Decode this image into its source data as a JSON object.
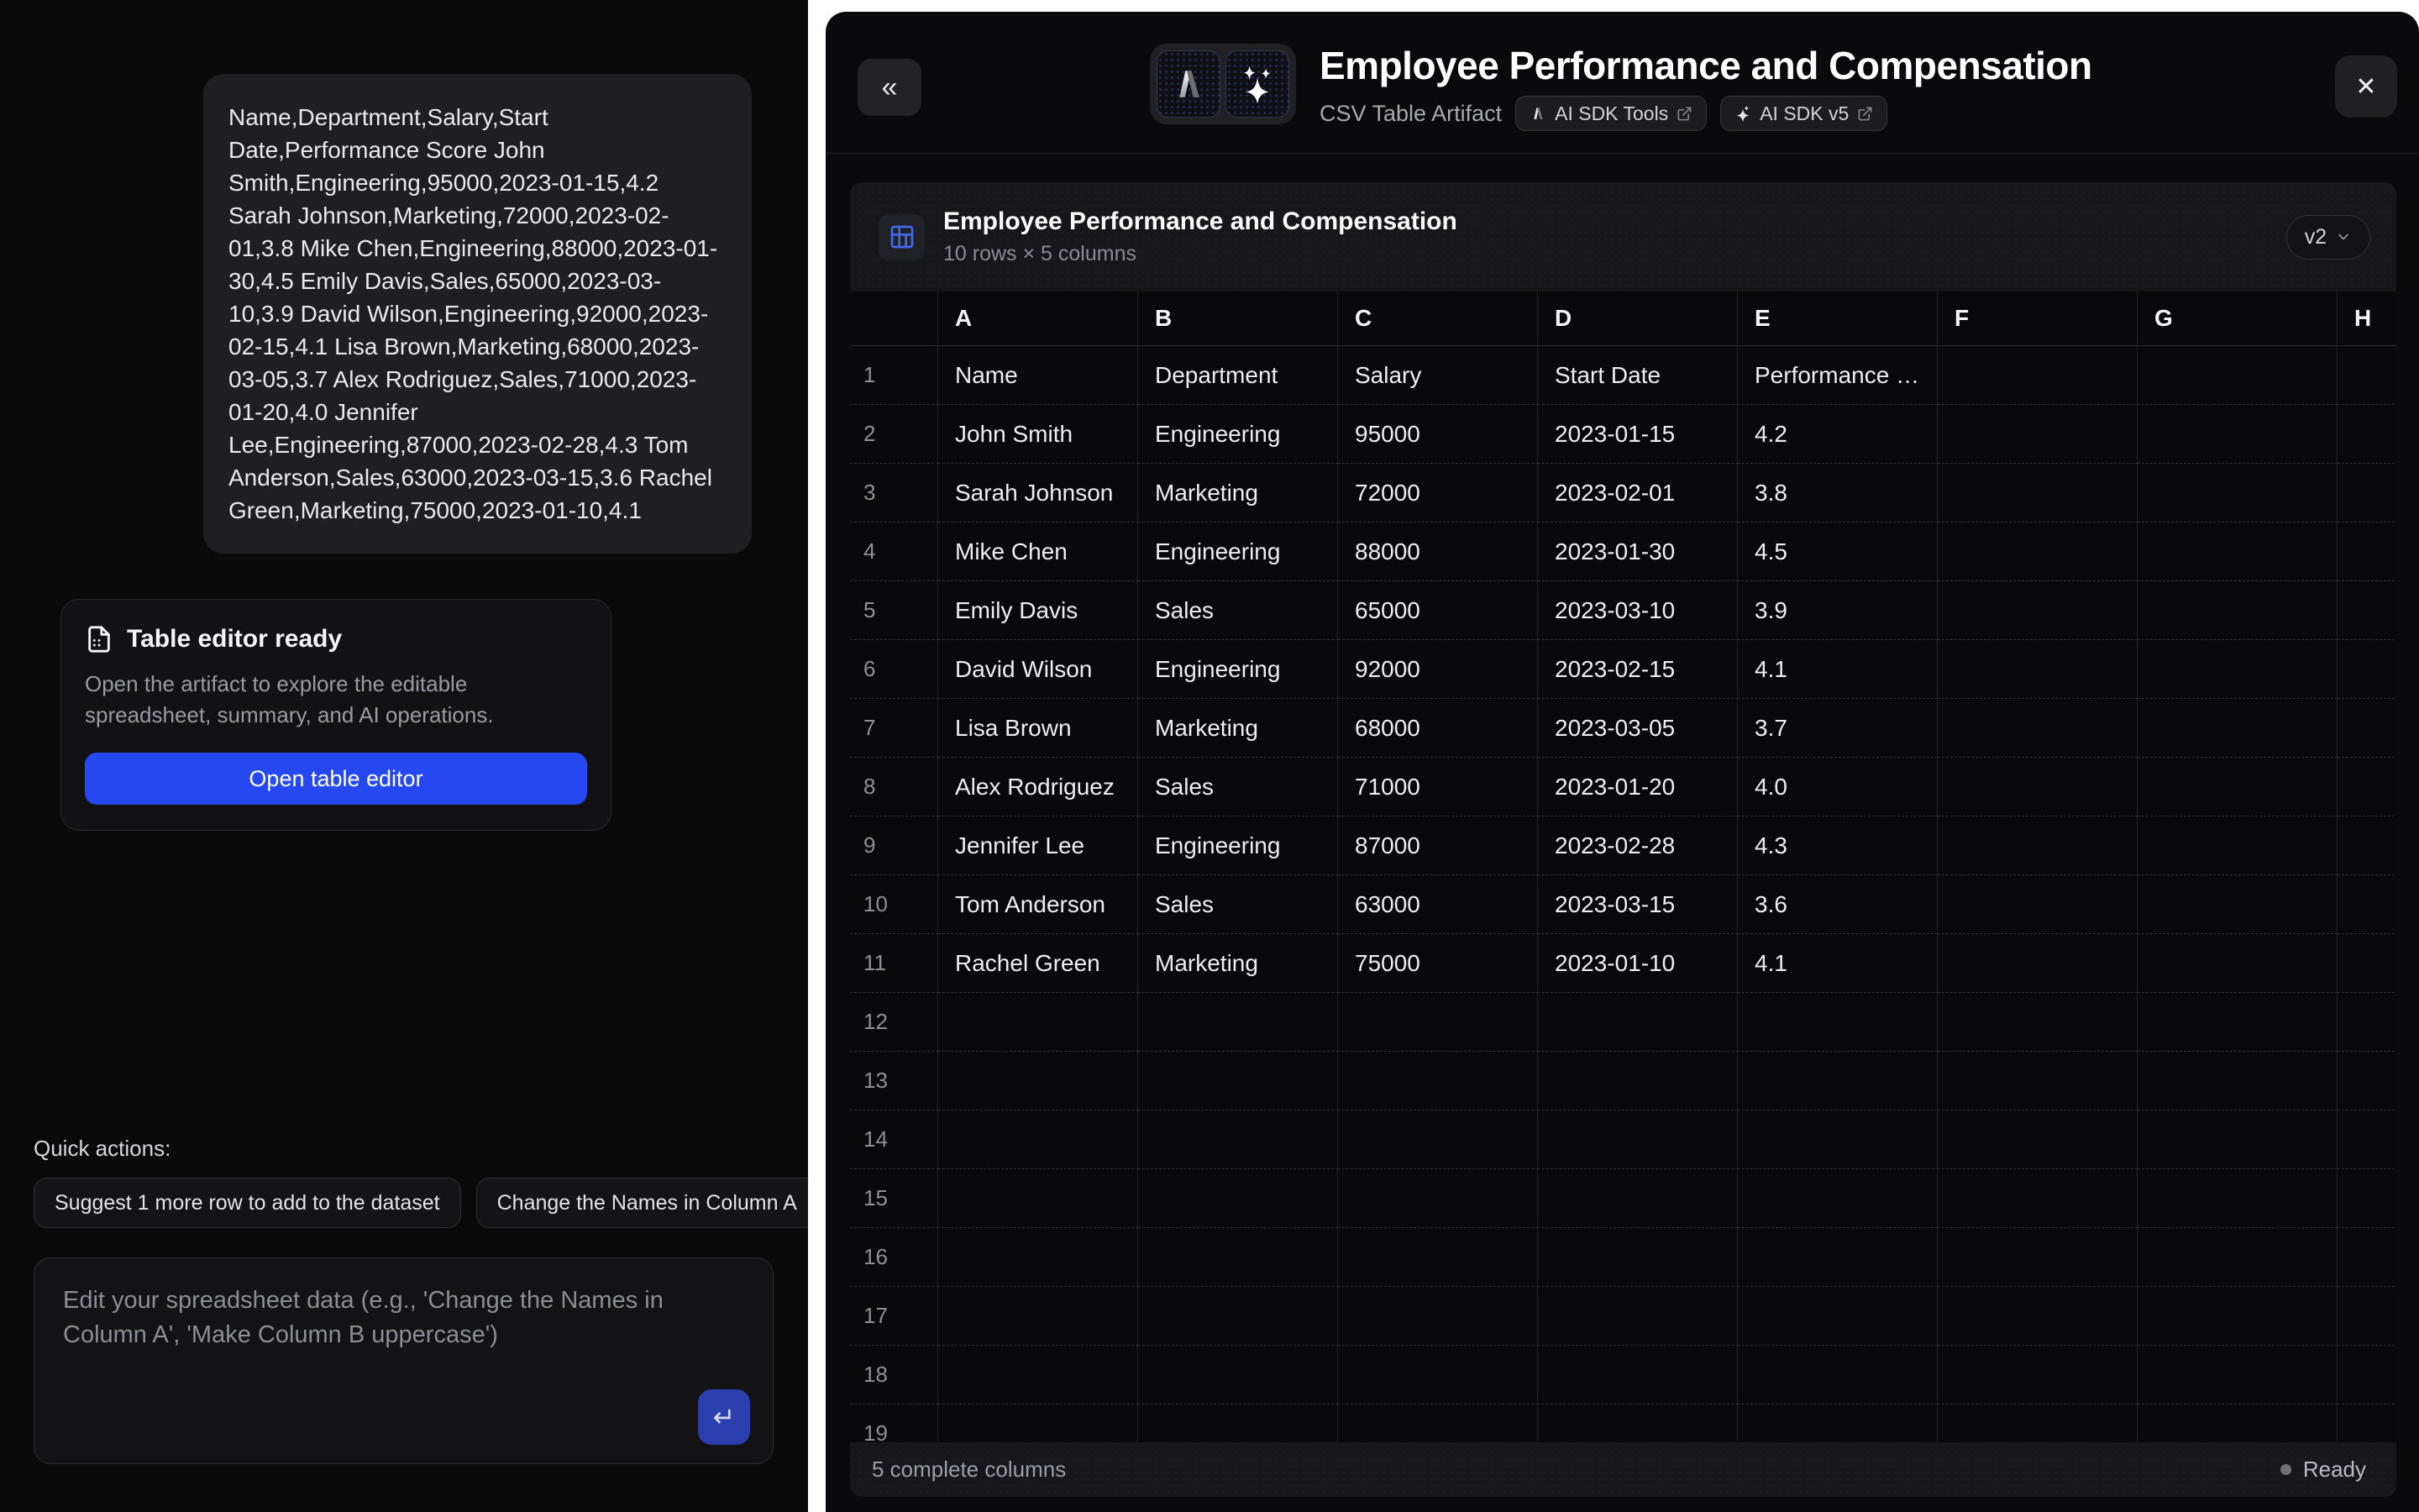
{
  "colors": {
    "primary_button_blue": "#2648f0",
    "submit_button_blue": "#2b3fae",
    "table_icon_blue": "#4169f0",
    "status_dot_gray": "#71717a"
  },
  "left_panel": {
    "csv_message": "Name,Department,Salary,Start Date,Performance Score John Smith,Engineering,95000,2023-01-15,4.2 Sarah Johnson,Marketing,72000,2023-02-01,3.8 Mike Chen,Engineering,88000,2023-01-30,4.5 Emily Davis,Sales,65000,2023-03-10,3.9 David Wilson,Engineering,92000,2023-02-15,4.1 Lisa Brown,Marketing,68000,2023-03-05,3.7 Alex Rodriguez,Sales,71000,2023-01-20,4.0 Jennifer Lee,Engineering,87000,2023-02-28,4.3 Tom Anderson,Sales,63000,2023-03-15,3.6 Rachel Green,Marketing,75000,2023-01-10,4.1",
    "notice_card": {
      "title": "Table editor ready",
      "description": "Open the artifact to explore the editable spreadsheet, summary, and AI operations.",
      "button_label": "Open table editor"
    },
    "quick_actions": {
      "label": "Quick actions:",
      "actions": [
        "Suggest 1 more row to add to the dataset",
        "Change the Names in Column A"
      ]
    },
    "composer": {
      "placeholder": "Edit your spreadsheet data (e.g., 'Change the Names in Column A', 'Make Column B uppercase')",
      "submit_glyph": "↵"
    }
  },
  "artifact_panel": {
    "header": {
      "collapse_glyph": "«",
      "title": "Employee Performance and Compensation",
      "subtitle": "CSV Table Artifact",
      "badges": [
        {
          "label": "AI SDK Tools"
        },
        {
          "label": "AI SDK v5"
        }
      ],
      "close_glyph": "✕"
    },
    "table_card": {
      "title": "Employee Performance and Compensation",
      "meta": "10 rows × 5 columns",
      "version": "v2"
    },
    "grid": {
      "column_letters": [
        "A",
        "B",
        "C",
        "D",
        "E",
        "F",
        "G",
        "H"
      ],
      "header_row": [
        "Name",
        "Department",
        "Salary",
        "Start Date",
        "Performance Score"
      ],
      "data_rows": [
        [
          "John Smith",
          "Engineering",
          "95000",
          "2023-01-15",
          "4.2"
        ],
        [
          "Sarah Johnson",
          "Marketing",
          "72000",
          "2023-02-01",
          "3.8"
        ],
        [
          "Mike Chen",
          "Engineering",
          "88000",
          "2023-01-30",
          "4.5"
        ],
        [
          "Emily Davis",
          "Sales",
          "65000",
          "2023-03-10",
          "3.9"
        ],
        [
          "David Wilson",
          "Engineering",
          "92000",
          "2023-02-15",
          "4.1"
        ],
        [
          "Lisa Brown",
          "Marketing",
          "68000",
          "2023-03-05",
          "3.7"
        ],
        [
          "Alex Rodriguez",
          "Sales",
          "71000",
          "2023-01-20",
          "4.0"
        ],
        [
          "Jennifer Lee",
          "Engineering",
          "87000",
          "2023-02-28",
          "4.3"
        ],
        [
          "Tom Anderson",
          "Sales",
          "63000",
          "2023-03-15",
          "3.6"
        ],
        [
          "Rachel Green",
          "Marketing",
          "75000",
          "2023-01-10",
          "4.1"
        ]
      ],
      "visible_row_count": 19
    },
    "footer": {
      "left": "5 complete columns",
      "status": "Ready"
    }
  }
}
